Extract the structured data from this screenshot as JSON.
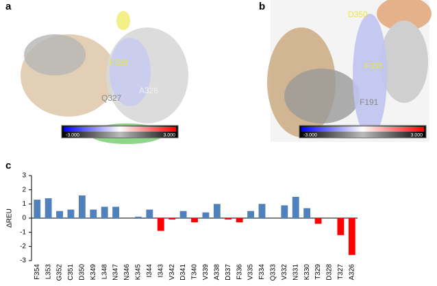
{
  "panels": {
    "a": {
      "label": "a",
      "annotations": [
        "F336",
        "A326",
        "Q327"
      ],
      "colorbar": {
        "min_label": "-3.000",
        "max_label": "3.000"
      }
    },
    "b": {
      "label": "b",
      "annotations": [
        "D350",
        "F336",
        "F191"
      ],
      "colorbar": {
        "min_label": "-3.000",
        "max_label": "3.000"
      }
    }
  },
  "chart_data": {
    "type": "bar",
    "panel_label": "c",
    "ylabel": "ΔREU",
    "categories": [
      "F354",
      "L353",
      "G352",
      "C351",
      "D350",
      "K349",
      "L348",
      "N347",
      "N346",
      "K345",
      "I344",
      "I343",
      "V342",
      "D341",
      "T340",
      "V339",
      "A338",
      "D337",
      "F336",
      "V335",
      "F334",
      "Q333",
      "V332",
      "N331",
      "K330",
      "T329",
      "D328",
      "T327",
      "A326"
    ],
    "values": [
      1.3,
      1.4,
      0.5,
      0.6,
      1.6,
      0.6,
      0.8,
      0.8,
      0,
      0.1,
      0.6,
      -0.9,
      -0.1,
      0.5,
      -0.3,
      0.4,
      1.0,
      -0.1,
      -0.3,
      0.5,
      1.0,
      0,
      0.9,
      1.5,
      0.7,
      -0.4,
      0,
      -1.2,
      -2.6
    ],
    "positive_color": "#4f81bd",
    "negative_color": "#ff0000",
    "ylim": [
      -3,
      3
    ],
    "yticks": [
      -3,
      -2,
      -1,
      0,
      1,
      2,
      3
    ],
    "grid": false
  }
}
